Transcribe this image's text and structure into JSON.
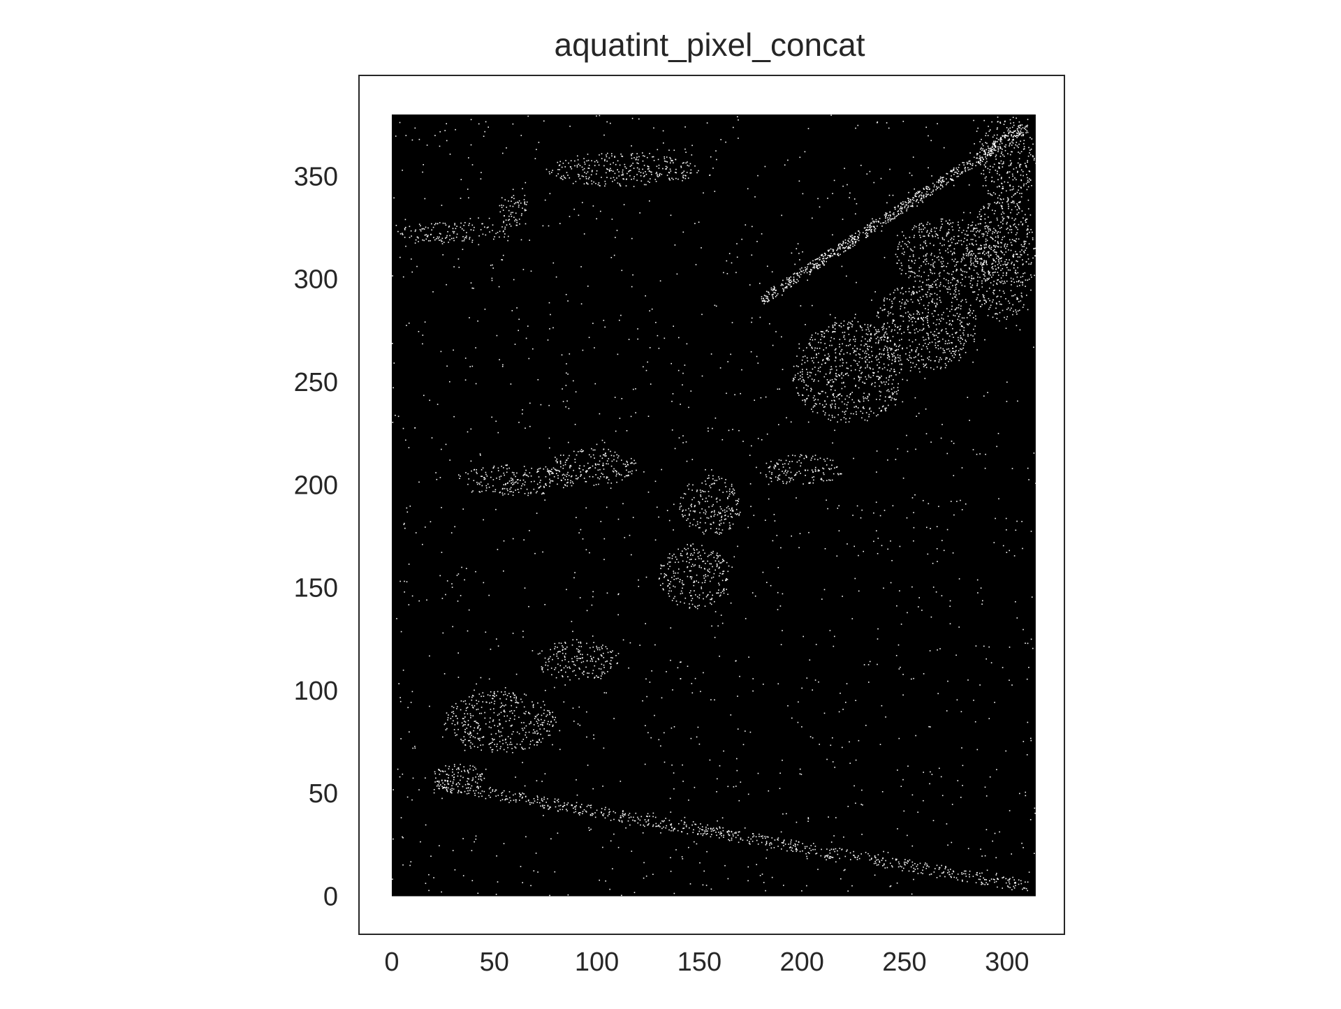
{
  "chart_data": {
    "type": "scatter",
    "title": "aquatint_pixel_concat",
    "xlabel": "",
    "ylabel": "",
    "xlim": [
      -16,
      328
    ],
    "ylim": [
      -18.5,
      399
    ],
    "data_extent": {
      "x": [
        0,
        314
      ],
      "y": [
        0,
        380
      ]
    },
    "x_ticks": [
      0,
      50,
      100,
      150,
      200,
      250,
      300
    ],
    "y_ticks": [
      0,
      50,
      100,
      150,
      200,
      250,
      300,
      350
    ],
    "grid": false,
    "legend": "none",
    "background_marker_color": "#000000",
    "highlight_color": "#ffffff",
    "series": [
      {
        "marker": "point",
        "rendering": "dense black pixel scatter filling the x 0-314, y 0-380 extent",
        "light_regions": [
          {
            "x": [
              2,
              60
            ],
            "y": [
              318,
              328
            ]
          },
          {
            "x": [
              52,
              66
            ],
            "y": [
              325,
              345
            ]
          },
          {
            "x": [
              75,
              150
            ],
            "y": [
              345,
              362
            ]
          },
          {
            "x": [
              75,
              120
            ],
            "y": [
              200,
              218
            ]
          },
          {
            "x": [
              30,
              90
            ],
            "y": [
              195,
              210
            ]
          },
          {
            "x": [
              130,
              165
            ],
            "y": [
              140,
              172
            ]
          },
          {
            "x": [
              140,
              170
            ],
            "y": [
              175,
              205
            ]
          },
          {
            "x": [
              180,
              220
            ],
            "y": [
              200,
              215
            ]
          },
          {
            "x": [
              195,
              250
            ],
            "y": [
              230,
              280
            ]
          },
          {
            "x": [
              235,
              285
            ],
            "y": [
              255,
              300
            ]
          },
          {
            "x": [
              245,
              300
            ],
            "y": [
              295,
              330
            ]
          },
          {
            "x": [
              280,
              314
            ],
            "y": [
              280,
              340
            ]
          },
          {
            "x": [
              285,
              314
            ],
            "y": [
              335,
              380
            ]
          },
          {
            "x": [
              25,
              80
            ],
            "y": [
              70,
              100
            ]
          },
          {
            "x": [
              70,
              110
            ],
            "y": [
              105,
              125
            ]
          },
          {
            "x": [
              20,
              45
            ],
            "y": [
              50,
              65
            ]
          }
        ],
        "light_bands": [
          {
            "x": [
              20,
              310
            ],
            "y_start": 55,
            "y_end": 5
          },
          {
            "x": [
              180,
              310
            ],
            "y_start": 290,
            "y_end": 375
          }
        ]
      }
    ]
  }
}
